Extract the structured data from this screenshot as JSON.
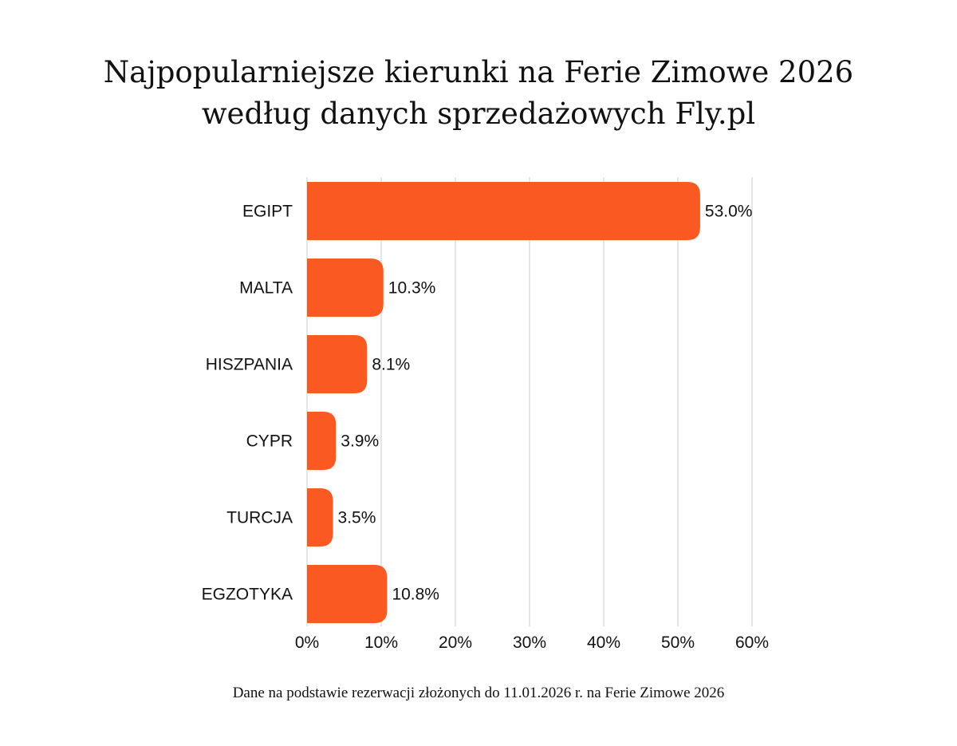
{
  "title_line1": "Najpopularniejsze kierunki na Ferie Zimowe 2026",
  "title_line2": "według danych sprzedażowych Fly.pl",
  "footnote": "Dane na podstawie rezerwacji złożonych do 11.01.2026 r. na Ferie Zimowe 2026",
  "colors": {
    "bar": "#FA5A22",
    "grid": "#DDDDDD"
  },
  "chart_data": {
    "type": "bar",
    "orientation": "horizontal",
    "title": "Najpopularniejsze kierunki na Ferie Zimowe 2026 według danych sprzedażowych Fly.pl",
    "categories": [
      "EGIPT",
      "MALTA",
      "HISZPANIA",
      "CYPR",
      "TURCJA",
      "EGZOTYKA"
    ],
    "values": [
      53.0,
      10.3,
      8.1,
      3.9,
      3.5,
      10.8
    ],
    "value_labels": [
      "53.0%",
      "10.3%",
      "8.1%",
      "3.9%",
      "3.5%",
      "10.8%"
    ],
    "xlim": [
      0,
      60
    ],
    "xticks": [
      "0%",
      "10%",
      "20%",
      "30%",
      "40%",
      "50%",
      "60%"
    ],
    "xlabel": "",
    "ylabel": "",
    "grid": true,
    "legend": "none"
  }
}
